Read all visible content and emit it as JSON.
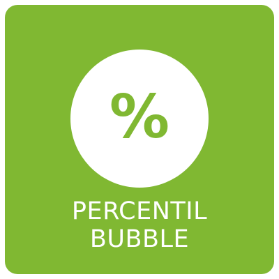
{
  "icon": {
    "symbol": "%",
    "symbol_icon": "percent-icon",
    "label_lines": [
      "PERCENTIL",
      "BUBBLE"
    ]
  },
  "colors": {
    "tile": "#80b832",
    "circle": "#ffffff",
    "symbol": "#80b832",
    "text": "#ffffff"
  }
}
